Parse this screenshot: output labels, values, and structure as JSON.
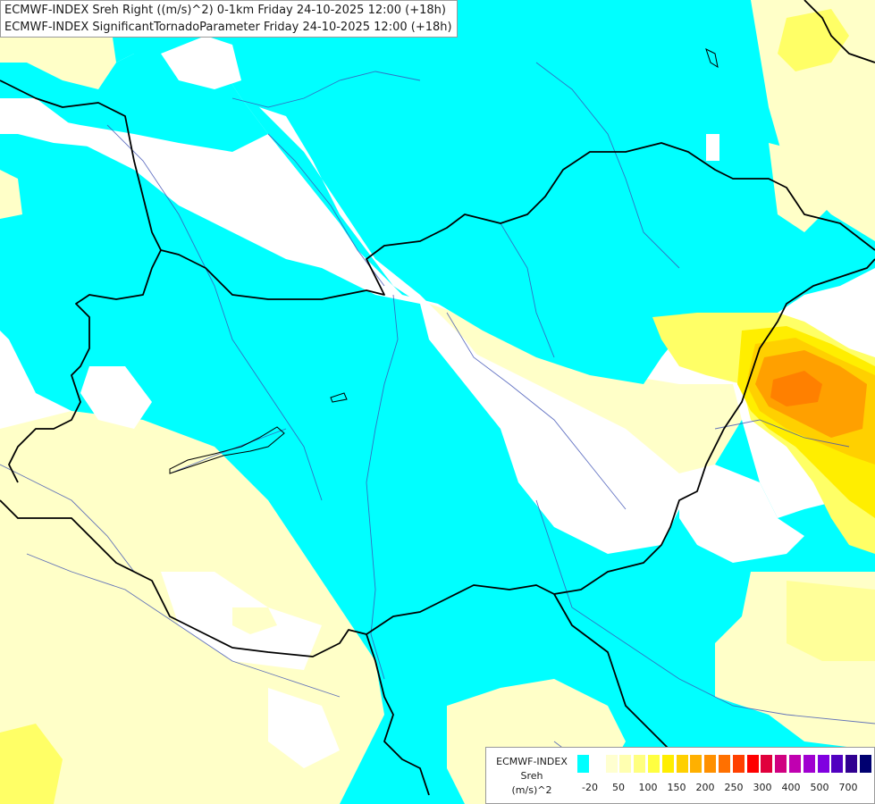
{
  "header": {
    "line1": "ECMWF-INDEX Sreh Right ((m/s)^2) 0-1km Friday 24-10-2025 12:00 (+18h)",
    "line2": "ECMWF-INDEX SignificantTornadoParameter Friday 24-10-2025 12:00 (+18h)"
  },
  "legend": {
    "model": "ECMWF-INDEX",
    "variable": "Sreh",
    "unit": "(m/s)^2",
    "colors": [
      "#00ffff",
      "#ffffff",
      "#ffffd0",
      "#ffffb0",
      "#ffff80",
      "#ffff40",
      "#ffee00",
      "#ffd000",
      "#ffb000",
      "#ff9000",
      "#ff7000",
      "#ff4000",
      "#ff0000",
      "#e0003c",
      "#d00080",
      "#c000b0",
      "#a000d0",
      "#8000e0",
      "#5000c0",
      "#300090",
      "#000070"
    ],
    "ticks": [
      "-20",
      "50",
      "100",
      "150",
      "200",
      "250",
      "300",
      "400",
      "500",
      "700"
    ]
  },
  "colors": {
    "low_shear": "#00ffff",
    "neutral": "#ffffff",
    "pale": "#ffffc8",
    "yellow": "#ffff66",
    "gold": "#ffd000",
    "orange": "#ffa000",
    "dark_orange": "#ff8000"
  }
}
